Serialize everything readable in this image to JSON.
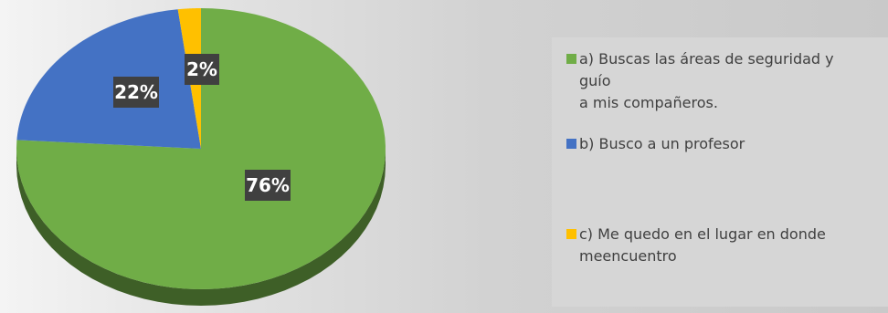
{
  "chart_data": {
    "type": "pie",
    "categories": [
      "a) Buscas las áreas de seguridad y guío a mis compañeros.",
      "b) Busco a un profesor",
      "c) Me quedo en el lugar en donde meencuentro"
    ],
    "values": [
      76,
      22,
      2
    ],
    "value_labels": [
      "76%",
      "22%",
      "2%"
    ],
    "colors": [
      "#70ad47",
      "#4472c4",
      "#ffc000"
    ],
    "label_background": "#404040",
    "label_color": "#ffffff",
    "legend_position": "right",
    "style": "3d"
  },
  "legend": {
    "items": [
      {
        "lines": [
          "a) Buscas las áreas de seguridad y",
          "guío",
          "a mis compañeros."
        ],
        "color": "#70ad47"
      },
      {
        "lines": [
          "b) Busco a un profesor"
        ],
        "color": "#4472c4"
      },
      {
        "lines": [
          "c) Me quedo en el lugar en donde",
          "meencuentro"
        ],
        "color": "#ffc000"
      }
    ]
  }
}
